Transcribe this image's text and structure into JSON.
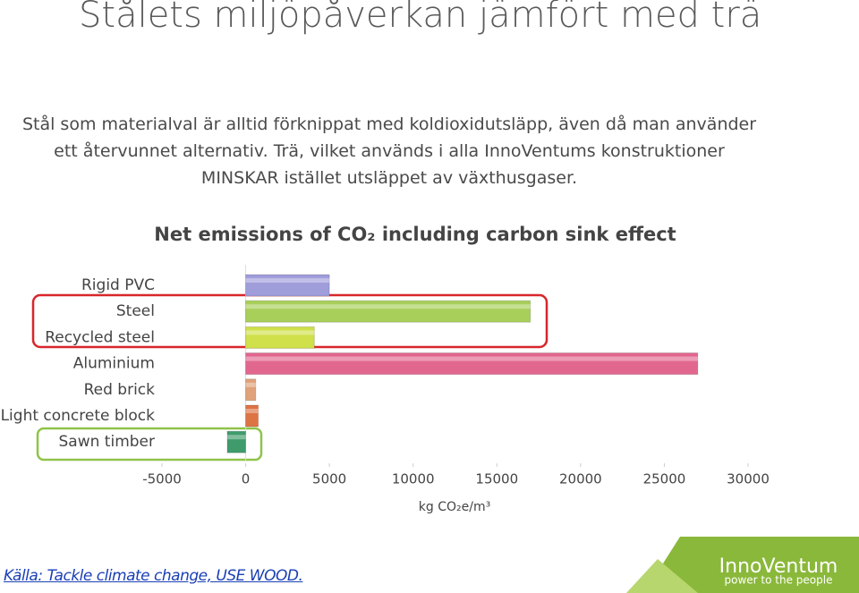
{
  "title": "Stålets miljöpåverkan jämfört med trä",
  "paragraph": [
    "Stål som materialval är alltid förknippat med koldioxidutsläpp, även då man använder",
    "ett återvunnet alternativ. Trä, vilket används i alla InnoVentums konstruktioner",
    "MINSKAR istället utsläppet av växthusgaser."
  ],
  "chart_data": {
    "type": "hbar",
    "title": "Net emissions of CO₂ including carbon sink effect",
    "x_label": "kg CO₂e/m³",
    "categories": [
      "Rigid PVC",
      "Steel",
      "Recycled steel",
      "Aluminium",
      "Red brick",
      "Light concrete block",
      "Sawn timber"
    ],
    "values": [
      5000,
      17000,
      4100,
      27000,
      600,
      750,
      -1100
    ],
    "colors": [
      "#a09ddb",
      "#a8cf5a",
      "#cfe04a",
      "#e2678f",
      "#e0a27a",
      "#dd7444",
      "#3f9b6b"
    ],
    "xlim": [
      -5000,
      30000
    ],
    "xticks": [
      -5000,
      0,
      5000,
      10000,
      15000,
      20000,
      25000,
      30000
    ]
  },
  "source": "Källa: Tackle climate change, USE WOOD.",
  "logo": {
    "name": "InnoVentum",
    "tagline": "power to the people"
  }
}
